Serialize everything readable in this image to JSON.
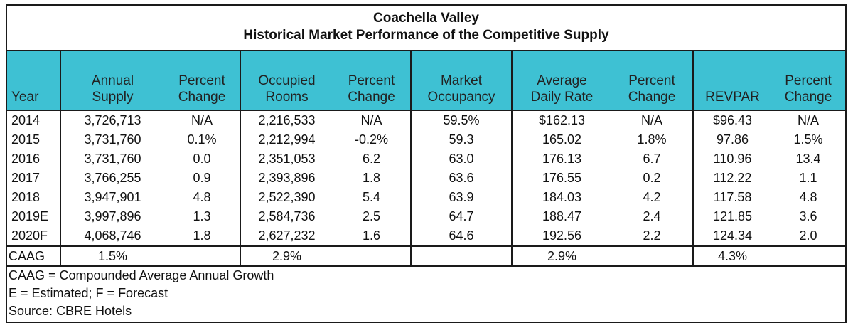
{
  "title": {
    "line1": "Coachella Valley",
    "line2": "Historical Market Performance of the Competitive Supply"
  },
  "columns": [
    [
      "Year"
    ],
    [
      "Annual",
      "Supply"
    ],
    [
      "Percent",
      "Change"
    ],
    [
      "Occupied",
      "Rooms"
    ],
    [
      "Percent",
      "Change"
    ],
    [
      "Market",
      "Occupancy"
    ],
    [
      "Average",
      "Daily Rate"
    ],
    [
      "Percent",
      "Change"
    ],
    [
      "REVPAR"
    ],
    [
      "Percent",
      "Change"
    ]
  ],
  "rows": [
    {
      "year": "2014",
      "supply": "3,726,713",
      "supply_chg": "N/A",
      "occupied": "2,216,533",
      "occupied_chg": "N/A",
      "occupancy": "59.5%",
      "adr": "$162.13",
      "adr_chg": "N/A",
      "revpar": "$96.43",
      "revpar_chg": "N/A"
    },
    {
      "year": "2015",
      "supply": "3,731,760",
      "supply_chg": "0.1%",
      "occupied": "2,212,994",
      "occupied_chg": "-0.2%",
      "occupancy": "59.3",
      "adr": "165.02",
      "adr_chg": "1.8%",
      "revpar": "97.86",
      "revpar_chg": "1.5%"
    },
    {
      "year": "2016",
      "supply": "3,731,760",
      "supply_chg": "0.0",
      "occupied": "2,351,053",
      "occupied_chg": "6.2",
      "occupancy": "63.0",
      "adr": "176.13",
      "adr_chg": "6.7",
      "revpar": "110.96",
      "revpar_chg": "13.4"
    },
    {
      "year": "2017",
      "supply": "3,766,255",
      "supply_chg": "0.9",
      "occupied": "2,393,896",
      "occupied_chg": "1.8",
      "occupancy": "63.6",
      "adr": "176.55",
      "adr_chg": "0.2",
      "revpar": "112.22",
      "revpar_chg": "1.1"
    },
    {
      "year": "2018",
      "supply": "3,947,901",
      "supply_chg": "4.8",
      "occupied": "2,522,390",
      "occupied_chg": "5.4",
      "occupancy": "63.9",
      "adr": "184.03",
      "adr_chg": "4.2",
      "revpar": "117.58",
      "revpar_chg": "4.8"
    },
    {
      "year": "2019E",
      "supply": "3,997,896",
      "supply_chg": "1.3",
      "occupied": "2,584,736",
      "occupied_chg": "2.5",
      "occupancy": "64.7",
      "adr": "188.47",
      "adr_chg": "2.4",
      "revpar": "121.85",
      "revpar_chg": "3.6"
    },
    {
      "year": "2020F",
      "supply": "4,068,746",
      "supply_chg": "1.8",
      "occupied": "2,627,232",
      "occupied_chg": "1.6",
      "occupancy": "64.6",
      "adr": "192.56",
      "adr_chg": "2.2",
      "revpar": "124.34",
      "revpar_chg": "2.0"
    }
  ],
  "caag": {
    "label": "CAAG",
    "supply": "1.5%",
    "occupied": "2.9%",
    "adr": "2.9%",
    "revpar": "4.3%"
  },
  "notes": [
    "CAAG = Compounded Average Annual Growth",
    "E = Estimated; F = Forecast",
    "Source: CBRE Hotels"
  ]
}
